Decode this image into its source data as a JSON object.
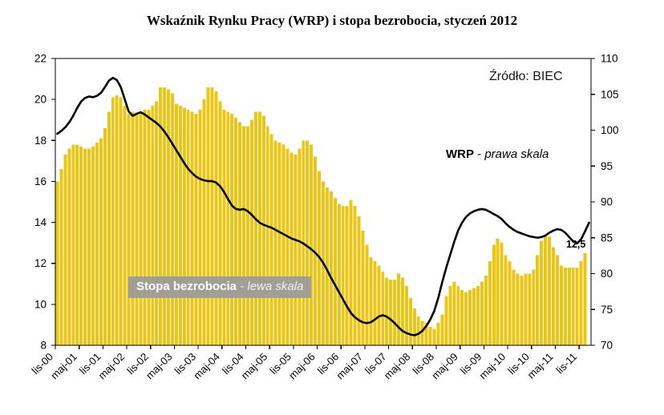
{
  "title": "Wskaźnik Rynku Pracy (WRP) i stopa bezrobocia, styczeń 2012",
  "source_label": "Źródło: BIEC",
  "annotations": {
    "wrp": {
      "bold": "WRP",
      "sep": " - ",
      "italic": "prawa skala"
    },
    "unemployment": {
      "bold": "Stopa bezrobocia",
      "sep": " - ",
      "italic": "lewa skala"
    },
    "last_bar_value_label": "12,5"
  },
  "colors": {
    "bar": "#EDC613",
    "line": "#000000",
    "axis": "#000000",
    "label_box_bg": "#9B9B9B",
    "label_box_text": "#FFFFFF"
  },
  "chart_data": {
    "type": "bar+line combo, monthly series",
    "x_start": "lis-00",
    "x_tick_labels": [
      "lis-00",
      "maj-01",
      "lis-01",
      "maj-02",
      "lis-02",
      "maj-03",
      "lis-03",
      "maj-04",
      "lis-04",
      "maj-05",
      "lis-05",
      "maj-06",
      "lis-06",
      "maj-07",
      "lis-07",
      "maj-08",
      "lis-08",
      "maj-09",
      "lis-09",
      "maj-10",
      "lis-10",
      "maj-11",
      "lis-11"
    ],
    "months_per_tick": 6,
    "left_axis": {
      "min": 8,
      "max": 22,
      "ticks": [
        22,
        20,
        18,
        16,
        14,
        12,
        10,
        8
      ]
    },
    "right_axis": {
      "min": 70,
      "max": 110,
      "ticks": [
        110,
        105,
        100,
        95,
        90,
        85,
        80,
        75,
        70
      ]
    },
    "grid": false,
    "series": [
      {
        "name": "Stopa bezrobocia",
        "type": "bar",
        "axis": "left",
        "range": "lis-00 … gru-11",
        "values": [
          16.0,
          16.6,
          17.3,
          17.6,
          17.8,
          17.8,
          17.7,
          17.6,
          17.6,
          17.7,
          17.9,
          18.1,
          18.6,
          19.4,
          20.1,
          20.2,
          20.1,
          19.7,
          19.3,
          19.4,
          19.3,
          19.4,
          19.5,
          19.5,
          19.7,
          19.9,
          20.6,
          20.6,
          20.5,
          20.3,
          19.8,
          19.7,
          19.6,
          19.5,
          19.4,
          19.3,
          19.5,
          20.0,
          20.6,
          20.6,
          20.4,
          19.9,
          19.5,
          19.4,
          19.3,
          19.1,
          18.9,
          18.7,
          18.7,
          19.0,
          19.4,
          19.4,
          19.2,
          18.7,
          18.3,
          18.0,
          17.9,
          17.8,
          17.6,
          17.4,
          17.3,
          17.6,
          18.0,
          18.0,
          17.8,
          17.2,
          16.5,
          16.0,
          15.7,
          15.5,
          15.2,
          14.9,
          14.8,
          14.8,
          15.1,
          14.8,
          14.3,
          13.6,
          12.9,
          12.3,
          12.1,
          11.9,
          11.6,
          11.3,
          11.2,
          11.2,
          11.5,
          11.3,
          10.9,
          10.3,
          9.8,
          9.4,
          9.2,
          9.1,
          8.9,
          8.8,
          9.1,
          9.5,
          10.4,
          10.9,
          11.1,
          10.9,
          10.7,
          10.6,
          10.7,
          10.8,
          10.9,
          11.1,
          11.4,
          12.1,
          12.9,
          13.2,
          13.0,
          12.4,
          12.1,
          11.7,
          11.5,
          11.4,
          11.5,
          11.5,
          11.7,
          12.4,
          13.1,
          13.4,
          13.3,
          12.8,
          12.4,
          11.9,
          11.8,
          11.8,
          11.8,
          11.8,
          12.1,
          12.5
        ]
      },
      {
        "name": "WRP",
        "type": "line",
        "axis": "right",
        "range": "lis-00 … sty-12",
        "values": [
          99.5,
          99.9,
          100.4,
          101.1,
          102.0,
          103.1,
          104.0,
          104.5,
          104.7,
          104.6,
          104.8,
          105.2,
          106.0,
          106.9,
          107.3,
          107.0,
          106.0,
          104.3,
          102.6,
          102.0,
          102.3,
          102.5,
          102.2,
          101.8,
          101.4,
          101.0,
          100.5,
          99.8,
          99.0,
          98.1,
          97.2,
          96.3,
          95.4,
          94.6,
          94.0,
          93.5,
          93.2,
          93.0,
          92.9,
          92.9,
          92.7,
          92.2,
          91.4,
          90.4,
          89.5,
          89.0,
          88.9,
          89.0,
          88.7,
          88.2,
          87.6,
          87.1,
          86.8,
          86.6,
          86.4,
          86.1,
          85.8,
          85.5,
          85.2,
          84.9,
          84.7,
          84.5,
          84.2,
          83.8,
          83.4,
          82.9,
          82.3,
          81.5,
          80.5,
          79.4,
          78.4,
          77.4,
          76.4,
          75.4,
          74.5,
          73.9,
          73.5,
          73.2,
          73.1,
          73.2,
          73.6,
          74.0,
          74.2,
          74.0,
          73.6,
          73.1,
          72.5,
          72.0,
          71.7,
          71.5,
          71.4,
          71.6,
          72.0,
          72.7,
          73.6,
          74.8,
          76.6,
          78.8,
          80.8,
          82.6,
          84.4,
          86.0,
          87.1,
          87.9,
          88.4,
          88.7,
          88.9,
          89.0,
          88.9,
          88.6,
          88.3,
          88.0,
          87.6,
          87.0,
          86.5,
          86.1,
          85.8,
          85.6,
          85.4,
          85.2,
          85.1,
          85.0,
          85.1,
          85.3,
          85.7,
          86.0,
          86.2,
          86.1,
          85.7,
          85.1,
          84.5,
          84.2,
          84.8,
          85.9,
          87.1
        ]
      }
    ]
  }
}
